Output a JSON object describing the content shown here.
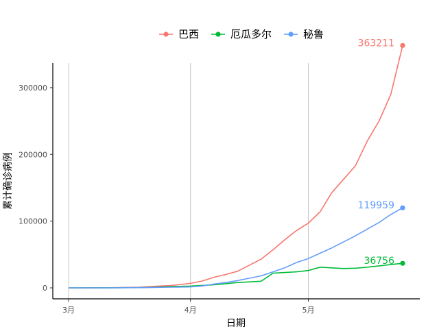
{
  "chart_data": {
    "type": "line",
    "xlabel": "日期",
    "ylabel": "累计确诊病例",
    "x_ticks": [
      "3月",
      "4月",
      "5月"
    ],
    "x_tick_days": [
      0,
      31,
      61
    ],
    "y_ticks": [
      0,
      100000,
      200000,
      300000
    ],
    "y_tick_labels": [
      "0",
      "100000",
      "200000",
      "300000"
    ],
    "xlim_days": [
      0,
      85
    ],
    "ylim": [
      0,
      380000
    ],
    "legend_position": "top",
    "grid": "vertical major lines only",
    "series": [
      {
        "name": "巴西",
        "color": "#F8766D",
        "end_label": "363211",
        "x_days": [
          0,
          10,
          18,
          21,
          26,
          31,
          34,
          37,
          40,
          43,
          46,
          49,
          52,
          55,
          58,
          61,
          64,
          67,
          70,
          73,
          76,
          79,
          82,
          85
        ],
        "values": [
          0,
          200,
          900,
          2200,
          3500,
          6800,
          10300,
          15900,
          20000,
          25000,
          34000,
          43000,
          57000,
          72000,
          86000,
          97000,
          114000,
          143000,
          163000,
          183000,
          220000,
          250000,
          290000,
          363211
        ]
      },
      {
        "name": "厄瓜多尔",
        "color": "#00BA38",
        "end_label": "36756",
        "x_days": [
          0,
          10,
          18,
          21,
          26,
          31,
          34,
          37,
          40,
          43,
          46,
          49,
          52,
          55,
          58,
          61,
          64,
          67,
          70,
          73,
          76,
          79,
          82,
          85
        ],
        "values": [
          0,
          100,
          400,
          800,
          1900,
          2700,
          3700,
          4700,
          6300,
          8000,
          8900,
          10000,
          22000,
          23000,
          24000,
          26000,
          31000,
          30000,
          29000,
          29500,
          31000,
          33000,
          35000,
          36756
        ]
      },
      {
        "name": "秘鲁",
        "color": "#619CFF",
        "end_label": "119959",
        "x_days": [
          0,
          10,
          18,
          21,
          26,
          31,
          34,
          37,
          40,
          43,
          46,
          49,
          52,
          55,
          58,
          61,
          64,
          67,
          70,
          73,
          76,
          79,
          82,
          85
        ],
        "values": [
          0,
          20,
          300,
          600,
          1000,
          1400,
          2900,
          5800,
          8000,
          11000,
          14500,
          18000,
          24000,
          30000,
          38000,
          44000,
          52000,
          60000,
          69000,
          78000,
          88000,
          98000,
          110000,
          119959
        ]
      }
    ]
  }
}
